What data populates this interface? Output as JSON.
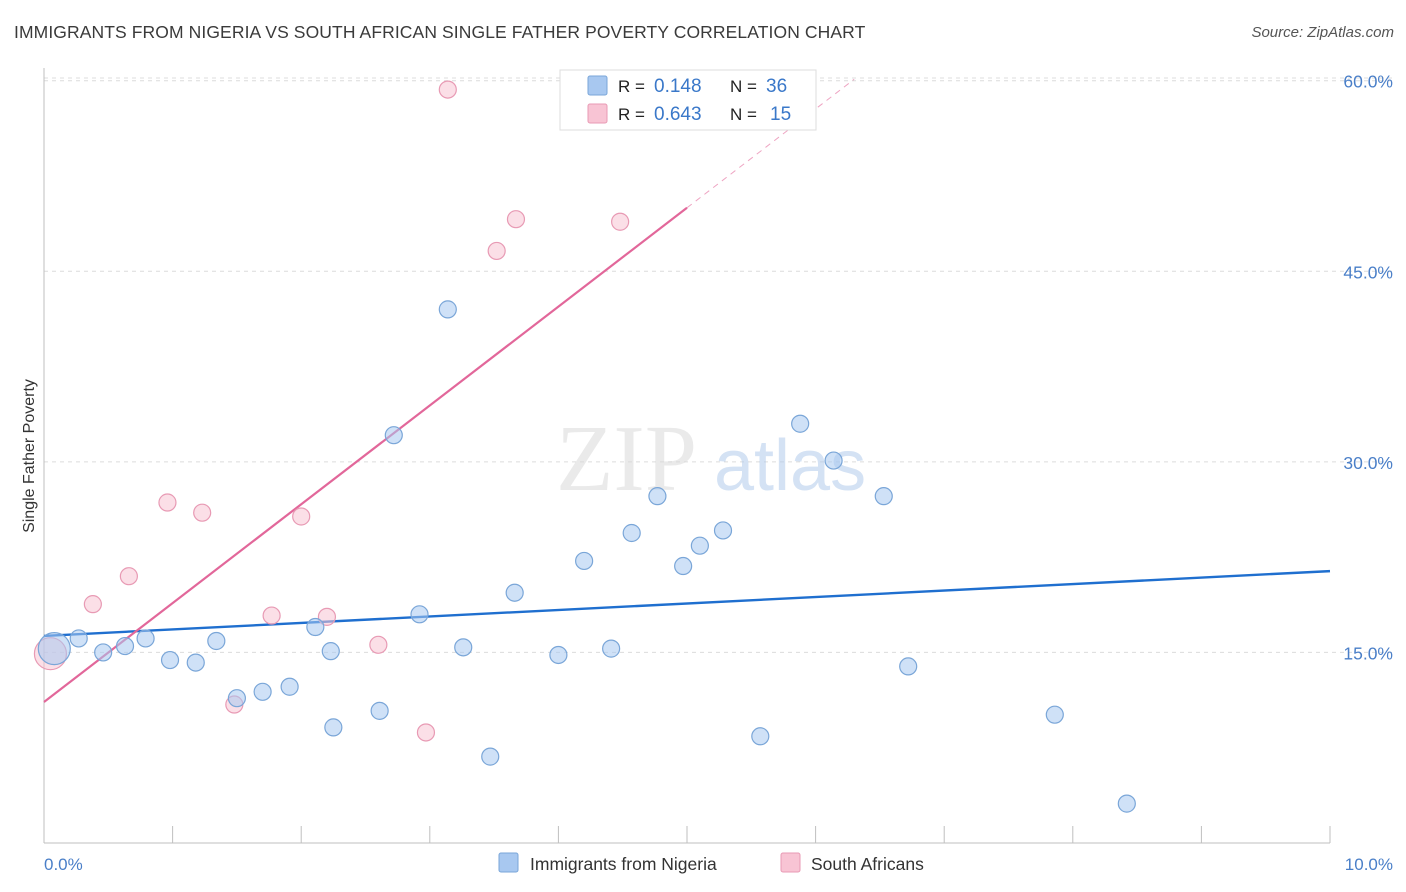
{
  "chart_data": {
    "type": "scatter",
    "title": "IMMIGRANTS FROM NIGERIA VS SOUTH AFRICAN SINGLE FATHER POVERTY CORRELATION CHART",
    "source": "Source: ZipAtlas.com",
    "xlabel": "",
    "ylabel": "Single Father Poverty",
    "xlim": [
      0,
      10
    ],
    "ylim": [
      0,
      61
    ],
    "x_tick_labels": {
      "min": "0.0%",
      "max": "10.0%"
    },
    "x_minor_ticks": [
      1,
      2,
      3,
      4,
      5,
      6,
      7,
      8,
      9,
      10
    ],
    "y_ticks": [
      {
        "value": 15,
        "label": "15.0%"
      },
      {
        "value": 30,
        "label": "30.0%"
      },
      {
        "value": 45,
        "label": "45.0%"
      },
      {
        "value": 60,
        "label": "60.0%"
      }
    ],
    "grid": true,
    "watermark": {
      "part1": "ZIP",
      "part2": "atlas"
    },
    "legend_top": [
      {
        "r_label": "R =",
        "r_value": "0.148",
        "n_label": "N =",
        "n_value": "36"
      },
      {
        "r_label": "R =",
        "r_value": "0.643",
        "n_label": "N =",
        "n_value": "15"
      }
    ],
    "series": [
      {
        "name": "Immigrants from Nigeria",
        "color": "#a8c8f0",
        "stroke": "#7aa6d8",
        "line_color": "#1f6fcf",
        "trend": {
          "x0": 0,
          "y0": 16.3,
          "x1": 10,
          "y1": 21.4
        },
        "points": [
          {
            "x": 0.08,
            "y": 15.3,
            "size": "large"
          },
          {
            "x": 0.27,
            "y": 16.1
          },
          {
            "x": 0.46,
            "y": 15.0
          },
          {
            "x": 0.63,
            "y": 15.5
          },
          {
            "x": 0.79,
            "y": 16.1
          },
          {
            "x": 0.98,
            "y": 14.4
          },
          {
            "x": 1.18,
            "y": 14.2
          },
          {
            "x": 1.34,
            "y": 15.9
          },
          {
            "x": 1.5,
            "y": 11.4
          },
          {
            "x": 1.7,
            "y": 11.9
          },
          {
            "x": 1.91,
            "y": 12.3
          },
          {
            "x": 2.11,
            "y": 17.0
          },
          {
            "x": 2.25,
            "y": 9.1
          },
          {
            "x": 2.23,
            "y": 15.1
          },
          {
            "x": 2.61,
            "y": 10.4
          },
          {
            "x": 2.72,
            "y": 32.1
          },
          {
            "x": 2.92,
            "y": 18.0
          },
          {
            "x": 3.14,
            "y": 42.0
          },
          {
            "x": 3.26,
            "y": 15.4
          },
          {
            "x": 3.47,
            "y": 6.8
          },
          {
            "x": 3.66,
            "y": 19.7
          },
          {
            "x": 4.0,
            "y": 14.8
          },
          {
            "x": 4.2,
            "y": 22.2
          },
          {
            "x": 4.41,
            "y": 15.3
          },
          {
            "x": 4.57,
            "y": 24.4
          },
          {
            "x": 4.77,
            "y": 27.3
          },
          {
            "x": 4.97,
            "y": 21.8
          },
          {
            "x": 5.1,
            "y": 23.4
          },
          {
            "x": 5.28,
            "y": 24.6
          },
          {
            "x": 5.57,
            "y": 8.4
          },
          {
            "x": 5.88,
            "y": 33.0
          },
          {
            "x": 6.14,
            "y": 30.1
          },
          {
            "x": 6.53,
            "y": 27.3
          },
          {
            "x": 6.72,
            "y": 13.9
          },
          {
            "x": 7.86,
            "y": 10.1
          },
          {
            "x": 8.42,
            "y": 3.1
          }
        ]
      },
      {
        "name": "South Africans",
        "color": "#f8c4d4",
        "stroke": "#e89ab4",
        "line_color": "#e2679a",
        "trend": {
          "x0": 0,
          "y0": 11.1,
          "x1": 5.0,
          "y1": 50.0,
          "x_dash_end": 6.3
        },
        "points": [
          {
            "x": 0.05,
            "y": 14.9,
            "size": "large"
          },
          {
            "x": 0.38,
            "y": 18.8
          },
          {
            "x": 0.66,
            "y": 21.0
          },
          {
            "x": 0.96,
            "y": 26.8
          },
          {
            "x": 1.23,
            "y": 26.0
          },
          {
            "x": 1.48,
            "y": 10.9
          },
          {
            "x": 1.77,
            "y": 17.9
          },
          {
            "x": 2.0,
            "y": 25.7
          },
          {
            "x": 2.2,
            "y": 17.8
          },
          {
            "x": 2.6,
            "y": 15.6
          },
          {
            "x": 2.97,
            "y": 8.7
          },
          {
            "x": 3.14,
            "y": 59.3
          },
          {
            "x": 3.52,
            "y": 46.6
          },
          {
            "x": 3.67,
            "y": 49.1
          },
          {
            "x": 4.48,
            "y": 48.9
          }
        ]
      }
    ]
  }
}
